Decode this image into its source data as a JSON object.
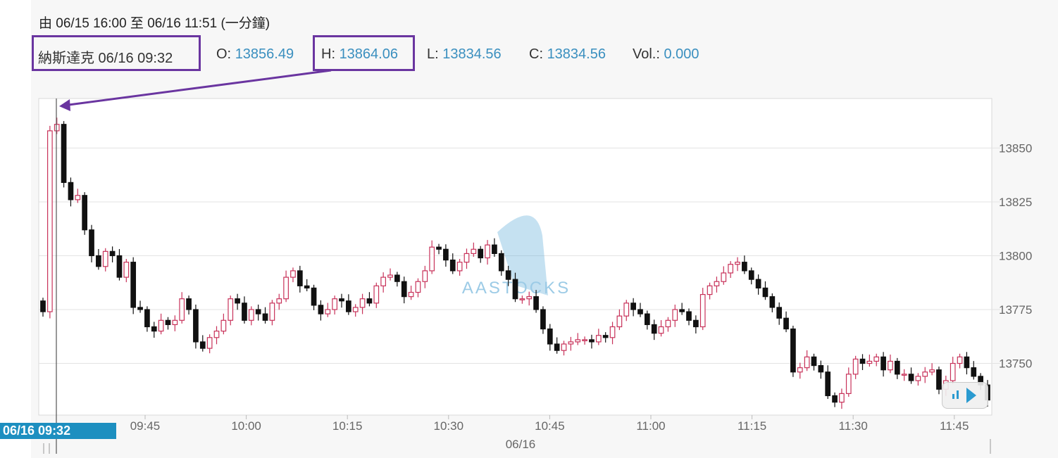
{
  "header": {
    "range_text": "由  06/15 16:00 至  06/16 11:51 (一分鐘)"
  },
  "quote": {
    "name_time": "納斯達克 06/16 09:32",
    "open_label": "O:",
    "open_value": "13856.49",
    "high_label": "H:",
    "high_value": "13864.06",
    "low_label": "L:",
    "low_value": "13834.56",
    "close_label": "C:",
    "close_value": "13834.56",
    "vol_label": "Vol.:",
    "vol_value": "0.000"
  },
  "cursor": {
    "label": "06/16 09:32"
  },
  "watermark": "AASTOCKS",
  "colors": {
    "up": "#c8325a",
    "down": "#111111",
    "accent": "#3a8fbf",
    "highlight": "#6a35a0",
    "cursor_bg": "#1d8fc0"
  },
  "chart_data": {
    "type": "candlestick",
    "title": "",
    "ylim": [
      13726,
      13873
    ],
    "y_ticks": [
      13850,
      13825,
      13800,
      13775,
      13750
    ],
    "x_ticks": [
      "09:45",
      "10:00",
      "10:15",
      "10:30",
      "10:45",
      "11:00",
      "11:15",
      "11:30",
      "11:45"
    ],
    "date_label": "06/16",
    "closes": [
      13774,
      13858,
      13861,
      13834,
      13826,
      13828,
      13812,
      13800,
      13795,
      13802,
      13800,
      13790,
      13797,
      13776,
      13775,
      13767,
      13765,
      13770,
      13768,
      13770,
      13780,
      13775,
      13760,
      13757,
      13762,
      13765,
      13770,
      13780,
      13778,
      13770,
      13775,
      13773,
      13770,
      13778,
      13780,
      13790,
      13793,
      13786,
      13785,
      13777,
      13773,
      13775,
      13780,
      13779,
      13774,
      13776,
      13780,
      13778,
      13786,
      13790,
      13791,
      13788,
      13781,
      13783,
      13788,
      13793,
      13804,
      13803,
      13798,
      13793,
      13797,
      13801,
      13803,
      13799,
      13805,
      13801,
      13793,
      13789,
      13780,
      13780,
      13781,
      13775,
      13766,
      13759,
      13756,
      13759,
      13760,
      13761,
      13761,
      13760,
      13763,
      13762,
      13767,
      13772,
      13778,
      13775,
      13773,
      13768,
      13764,
      13767,
      13770,
      13775,
      13774,
      13770,
      13767,
      13782,
      13786,
      13788,
      13792,
      13796,
      13797,
      13793,
      13789,
      13785,
      13781,
      13776,
      13771,
      13766,
      13746,
      13748,
      13753,
      13749,
      13746,
      13735,
      13732,
      13736,
      13745,
      13752,
      13750,
      13751,
      13753,
      13747,
      13751,
      13745,
      13745,
      13742,
      13744,
      13746,
      13747,
      13738,
      13742,
      13750,
      13753,
      13748,
      13744,
      13740,
      13733
    ]
  }
}
